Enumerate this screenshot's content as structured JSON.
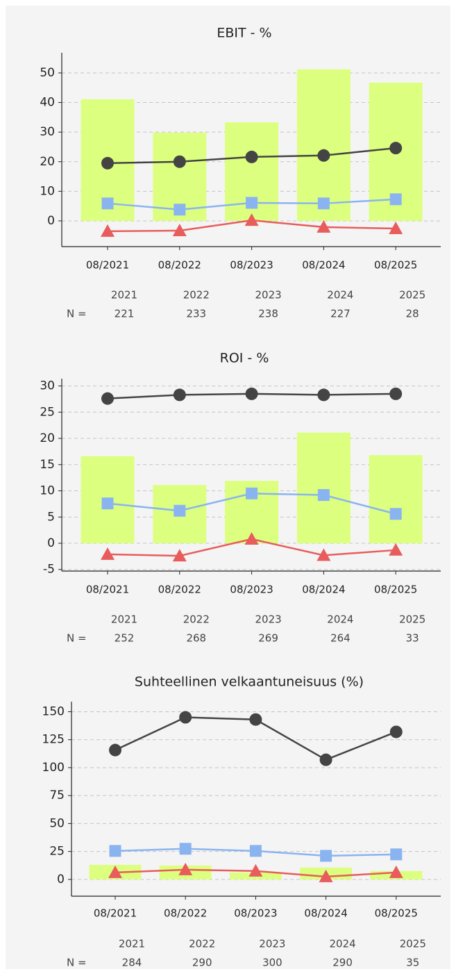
{
  "chart_data": [
    {
      "type": "combo",
      "title": "EBIT - %",
      "categories": [
        "08/2021",
        "08/2022",
        "08/2023",
        "08/2024",
        "08/2025"
      ],
      "ylim": [
        -8.7,
        56.8
      ],
      "yticks": [
        0,
        10,
        20,
        30,
        40,
        50
      ],
      "grid": true,
      "series": [
        {
          "kind": "bar",
          "color": "#dcff7f",
          "values": [
            41.1,
            29.8,
            33.3,
            51.2,
            46.7
          ]
        },
        {
          "kind": "line",
          "marker": "circle",
          "color": "#444444",
          "values": [
            19.5,
            20.0,
            21.6,
            22.1,
            24.6
          ]
        },
        {
          "kind": "line",
          "marker": "square",
          "color": "#8ab4f0",
          "values": [
            5.9,
            3.8,
            6.1,
            5.9,
            7.3
          ]
        },
        {
          "kind": "line",
          "marker": "triangle",
          "color": "#e85c5c",
          "values": [
            -3.5,
            -3.3,
            0.2,
            -2.1,
            -2.6
          ]
        }
      ],
      "table": {
        "years": [
          "2021",
          "2022",
          "2023",
          "2024",
          "2025"
        ],
        "n_label": "N =",
        "counts": [
          "221",
          "233",
          "238",
          "227",
          "28"
        ]
      }
    },
    {
      "type": "combo",
      "title": "ROI - %",
      "categories": [
        "08/2021",
        "08/2022",
        "08/2023",
        "08/2024",
        "08/2025"
      ],
      "ylim": [
        -5.3,
        31.4
      ],
      "yticks": [
        -5,
        0,
        5,
        10,
        15,
        20,
        25,
        30
      ],
      "grid": true,
      "series": [
        {
          "kind": "bar",
          "color": "#dcff7f",
          "values": [
            16.6,
            11.1,
            11.9,
            21.1,
            16.8
          ]
        },
        {
          "kind": "line",
          "marker": "circle",
          "color": "#444444",
          "values": [
            27.6,
            28.3,
            28.5,
            28.3,
            28.5
          ]
        },
        {
          "kind": "line",
          "marker": "square",
          "color": "#8ab4f0",
          "values": [
            7.6,
            6.2,
            9.5,
            9.2,
            5.6
          ]
        },
        {
          "kind": "line",
          "marker": "triangle",
          "color": "#e85c5c",
          "values": [
            -2.1,
            -2.4,
            0.8,
            -2.3,
            -1.3
          ]
        }
      ],
      "table": {
        "years": [
          "2021",
          "2022",
          "2023",
          "2024",
          "2025"
        ],
        "n_label": "N =",
        "counts": [
          "252",
          "268",
          "269",
          "264",
          "33"
        ]
      }
    },
    {
      "type": "combo",
      "title": "Suhteellinen velkaantuneisuus (%)",
      "categories": [
        "08/2021",
        "08/2022",
        "08/2023",
        "08/2024",
        "08/2025"
      ],
      "ylim": [
        -15,
        159
      ],
      "yticks": [
        0,
        25,
        50,
        75,
        100,
        125,
        150
      ],
      "grid": true,
      "series": [
        {
          "kind": "bar",
          "color": "#dcff7f",
          "values": [
            13,
            12.4,
            6.2,
            10.6,
            7.5
          ]
        },
        {
          "kind": "line",
          "marker": "circle",
          "color": "#444444",
          "values": [
            115.7,
            145,
            143,
            107,
            132
          ]
        },
        {
          "kind": "line",
          "marker": "square",
          "color": "#8ab4f0",
          "values": [
            25.5,
            27.4,
            25.5,
            21.1,
            22.4
          ]
        },
        {
          "kind": "line",
          "marker": "triangle",
          "color": "#e85c5c",
          "values": [
            6.2,
            8.7,
            7.5,
            2.5,
            6.2
          ]
        }
      ],
      "table": {
        "years": [
          "2021",
          "2022",
          "2023",
          "2024",
          "2025"
        ],
        "n_label": "N =",
        "counts": [
          "284",
          "290",
          "300",
          "290",
          "35"
        ]
      }
    }
  ]
}
